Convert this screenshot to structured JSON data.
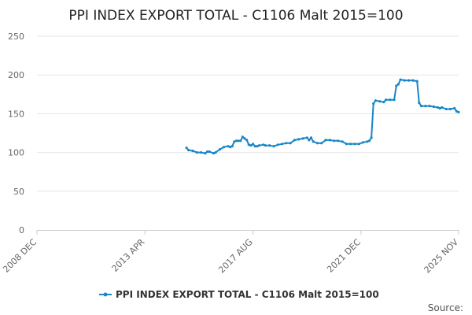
{
  "chart_data": {
    "type": "line",
    "title": "PPI INDEX EXPORT TOTAL - C1106 Malt 2015=100",
    "xlabel": "",
    "ylabel": "",
    "ylim": [
      0,
      250
    ],
    "yticks": [
      "0",
      "50",
      "100",
      "150",
      "200",
      "250"
    ],
    "xlim": [
      "2008-12",
      "2025-11"
    ],
    "xticks": [
      {
        "date": "2008-12",
        "label": "2008 DEC"
      },
      {
        "date": "2013-04",
        "label": "2013 APR"
      },
      {
        "date": "2017-08",
        "label": "2017 AUG"
      },
      {
        "date": "2021-12",
        "label": "2021 DEC"
      },
      {
        "date": "2025-11",
        "label": "2025 NOV"
      }
    ],
    "grid": "horizontal",
    "legend_position": "bottom",
    "colors": {
      "series": "#1a86c8",
      "grid": "#e6e6e6",
      "axis": "#cccccc"
    },
    "series": [
      {
        "name": "PPI INDEX EXPORT TOTAL - C1106 Malt 2015=100",
        "points": [
          [
            "2014-12",
            106
          ],
          [
            "2015-01",
            103
          ],
          [
            "2015-03",
            102
          ],
          [
            "2015-05",
            100
          ],
          [
            "2015-07",
            100
          ],
          [
            "2015-09",
            99
          ],
          [
            "2015-10",
            101
          ],
          [
            "2015-11",
            101
          ],
          [
            "2016-01",
            99
          ],
          [
            "2016-02",
            100
          ],
          [
            "2016-04",
            104
          ],
          [
            "2016-06",
            107
          ],
          [
            "2016-08",
            108
          ],
          [
            "2016-09",
            107
          ],
          [
            "2016-10",
            108
          ],
          [
            "2016-11",
            114
          ],
          [
            "2016-12",
            115
          ],
          [
            "2017-01",
            115
          ],
          [
            "2017-02",
            115
          ],
          [
            "2017-03",
            120
          ],
          [
            "2017-04",
            118
          ],
          [
            "2017-05",
            116
          ],
          [
            "2017-06",
            110
          ],
          [
            "2017-07",
            109
          ],
          [
            "2017-08",
            111
          ],
          [
            "2017-09",
            108
          ],
          [
            "2017-10",
            108
          ],
          [
            "2017-11",
            109
          ],
          [
            "2018-01",
            110
          ],
          [
            "2018-02",
            109
          ],
          [
            "2018-04",
            109
          ],
          [
            "2018-06",
            108
          ],
          [
            "2018-08",
            110
          ],
          [
            "2018-10",
            111
          ],
          [
            "2018-12",
            112
          ],
          [
            "2019-02",
            112
          ],
          [
            "2019-04",
            116
          ],
          [
            "2019-06",
            117
          ],
          [
            "2019-08",
            118
          ],
          [
            "2019-10",
            119
          ],
          [
            "2019-11",
            116
          ],
          [
            "2019-12",
            119
          ],
          [
            "2020-01",
            114
          ],
          [
            "2020-03",
            112
          ],
          [
            "2020-05",
            112
          ],
          [
            "2020-07",
            116
          ],
          [
            "2020-09",
            116
          ],
          [
            "2020-11",
            115
          ],
          [
            "2021-01",
            115
          ],
          [
            "2021-03",
            114
          ],
          [
            "2021-05",
            111
          ],
          [
            "2021-07",
            111
          ],
          [
            "2021-09",
            111
          ],
          [
            "2021-11",
            111
          ],
          [
            "2022-01",
            113
          ],
          [
            "2022-03",
            114
          ],
          [
            "2022-04",
            115
          ],
          [
            "2022-05",
            119
          ],
          [
            "2022-06",
            163
          ],
          [
            "2022-07",
            167
          ],
          [
            "2022-09",
            166
          ],
          [
            "2022-11",
            165
          ],
          [
            "2022-12",
            168
          ],
          [
            "2023-02",
            168
          ],
          [
            "2023-04",
            168
          ],
          [
            "2023-05",
            186
          ],
          [
            "2023-06",
            188
          ],
          [
            "2023-07",
            194
          ],
          [
            "2023-09",
            193
          ],
          [
            "2023-11",
            193
          ],
          [
            "2024-01",
            193
          ],
          [
            "2024-03",
            192
          ],
          [
            "2024-04",
            164
          ],
          [
            "2024-05",
            160
          ],
          [
            "2024-07",
            160
          ],
          [
            "2024-09",
            160
          ],
          [
            "2024-11",
            159
          ],
          [
            "2025-01",
            158
          ],
          [
            "2025-02",
            157
          ],
          [
            "2025-03",
            158
          ],
          [
            "2025-05",
            156
          ],
          [
            "2025-07",
            156
          ],
          [
            "2025-09",
            157
          ],
          [
            "2025-10",
            153
          ],
          [
            "2025-11",
            152
          ]
        ]
      }
    ]
  },
  "footer": {
    "source_label": "Source:"
  }
}
